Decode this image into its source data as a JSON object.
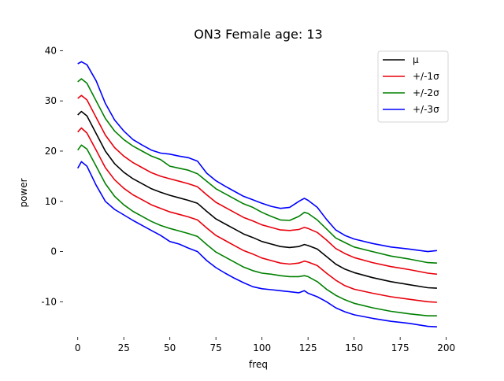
{
  "chart_data": {
    "type": "line",
    "title": "ON3 Female age: 13",
    "xlabel": "freq",
    "ylabel": "power",
    "xlim": [
      -8,
      204
    ],
    "ylim": [
      -17,
      41
    ],
    "xticks": [
      0,
      25,
      50,
      75,
      100,
      125,
      150,
      175,
      200
    ],
    "yticks": [
      -10,
      0,
      10,
      20,
      30,
      40
    ],
    "grid": false,
    "legend_position": "top-right",
    "x": [
      0,
      2,
      5,
      10,
      15,
      20,
      25,
      30,
      35,
      40,
      45,
      50,
      55,
      60,
      65,
      70,
      75,
      80,
      85,
      90,
      95,
      100,
      105,
      110,
      115,
      120,
      123,
      125,
      130,
      135,
      140,
      145,
      150,
      160,
      170,
      180,
      190,
      195
    ],
    "series": [
      {
        "name": "μ",
        "color": "#000000",
        "values": [
          27.2,
          27.9,
          27.0,
          23.5,
          20.0,
          17.5,
          15.8,
          14.5,
          13.5,
          12.5,
          11.8,
          11.2,
          10.7,
          10.2,
          9.6,
          8.0,
          6.5,
          5.5,
          4.5,
          3.5,
          2.8,
          2.0,
          1.5,
          1.0,
          0.8,
          1.0,
          1.4,
          1.2,
          0.5,
          -1.0,
          -2.5,
          -3.5,
          -4.2,
          -5.2,
          -6.0,
          -6.6,
          -7.2,
          -7.3
        ]
      },
      {
        "name": "+/-1σ",
        "color": "#e8000b",
        "values": [
          30.5,
          31.1,
          30.2,
          26.7,
          23.2,
          20.7,
          19.0,
          17.7,
          16.7,
          15.7,
          15.0,
          14.5,
          14.0,
          13.5,
          12.9,
          11.3,
          9.8,
          8.8,
          7.8,
          6.8,
          6.1,
          5.3,
          4.8,
          4.3,
          4.2,
          4.4,
          4.8,
          4.6,
          3.8,
          2.3,
          0.6,
          -0.4,
          -1.2,
          -2.2,
          -3.0,
          -3.6,
          -4.3,
          -4.5
        ]
      },
      {
        "name": "+/-1σ",
        "color": "#e8000b",
        "values": [
          23.8,
          24.6,
          23.6,
          20.2,
          16.7,
          14.3,
          12.6,
          11.3,
          10.3,
          9.3,
          8.6,
          7.9,
          7.4,
          6.9,
          6.3,
          4.7,
          3.2,
          2.2,
          1.2,
          0.2,
          -0.5,
          -1.3,
          -1.8,
          -2.3,
          -2.5,
          -2.3,
          -1.9,
          -2.1,
          -2.8,
          -4.3,
          -5.7,
          -6.8,
          -7.5,
          -8.3,
          -9.0,
          -9.5,
          -10.0,
          -10.1
        ]
      },
      {
        "name": "+/-2σ",
        "color": "#008000",
        "values": [
          33.8,
          34.4,
          33.5,
          30.0,
          26.5,
          24.0,
          22.3,
          21.0,
          20.0,
          19.0,
          18.3,
          17.0,
          16.6,
          16.2,
          15.5,
          14.0,
          12.5,
          11.5,
          10.5,
          9.5,
          8.8,
          7.8,
          7.0,
          6.3,
          6.2,
          7.0,
          7.8,
          7.6,
          6.3,
          4.5,
          2.7,
          1.8,
          0.9,
          0.0,
          -0.9,
          -1.5,
          -2.2,
          -2.3
        ]
      },
      {
        "name": "+/-2σ",
        "color": "#008000",
        "values": [
          20.2,
          21.2,
          20.4,
          17.0,
          13.5,
          11.0,
          9.3,
          8.0,
          7.0,
          6.0,
          5.2,
          4.6,
          4.1,
          3.6,
          3.0,
          1.4,
          -0.1,
          -1.1,
          -2.1,
          -3.1,
          -3.8,
          -4.3,
          -4.5,
          -4.8,
          -5.0,
          -5.0,
          -4.8,
          -5.0,
          -6.0,
          -7.5,
          -8.7,
          -9.6,
          -10.3,
          -11.2,
          -11.9,
          -12.4,
          -12.8,
          -12.8
        ]
      },
      {
        "name": "+/-3σ",
        "color": "#0000ff",
        "values": [
          37.4,
          37.8,
          37.2,
          34.0,
          29.5,
          26.2,
          24.0,
          22.3,
          21.2,
          20.2,
          19.6,
          19.4,
          19.0,
          18.7,
          18.0,
          15.6,
          14.1,
          13.0,
          12.0,
          11.0,
          10.3,
          9.6,
          9.0,
          8.6,
          8.8,
          10.0,
          10.6,
          10.2,
          8.8,
          6.4,
          4.3,
          3.2,
          2.5,
          1.6,
          0.9,
          0.5,
          0.0,
          0.2
        ]
      },
      {
        "name": "+/-3σ",
        "color": "#0000ff",
        "values": [
          16.6,
          17.9,
          17.0,
          13.2,
          10.0,
          8.4,
          7.3,
          6.2,
          5.2,
          4.2,
          3.2,
          2.0,
          1.5,
          0.7,
          0.0,
          -1.8,
          -3.2,
          -4.3,
          -5.3,
          -6.2,
          -7.0,
          -7.4,
          -7.6,
          -7.8,
          -8.0,
          -8.2,
          -7.8,
          -8.3,
          -9.0,
          -10.0,
          -11.2,
          -12.0,
          -12.6,
          -13.3,
          -13.9,
          -14.3,
          -14.9,
          -15.0
        ]
      }
    ],
    "legend": [
      {
        "label": "μ",
        "color": "#000000"
      },
      {
        "label": "+/-1σ",
        "color": "#e8000b"
      },
      {
        "label": "+/-2σ",
        "color": "#008000"
      },
      {
        "label": "+/-3σ",
        "color": "#0000ff"
      }
    ]
  }
}
